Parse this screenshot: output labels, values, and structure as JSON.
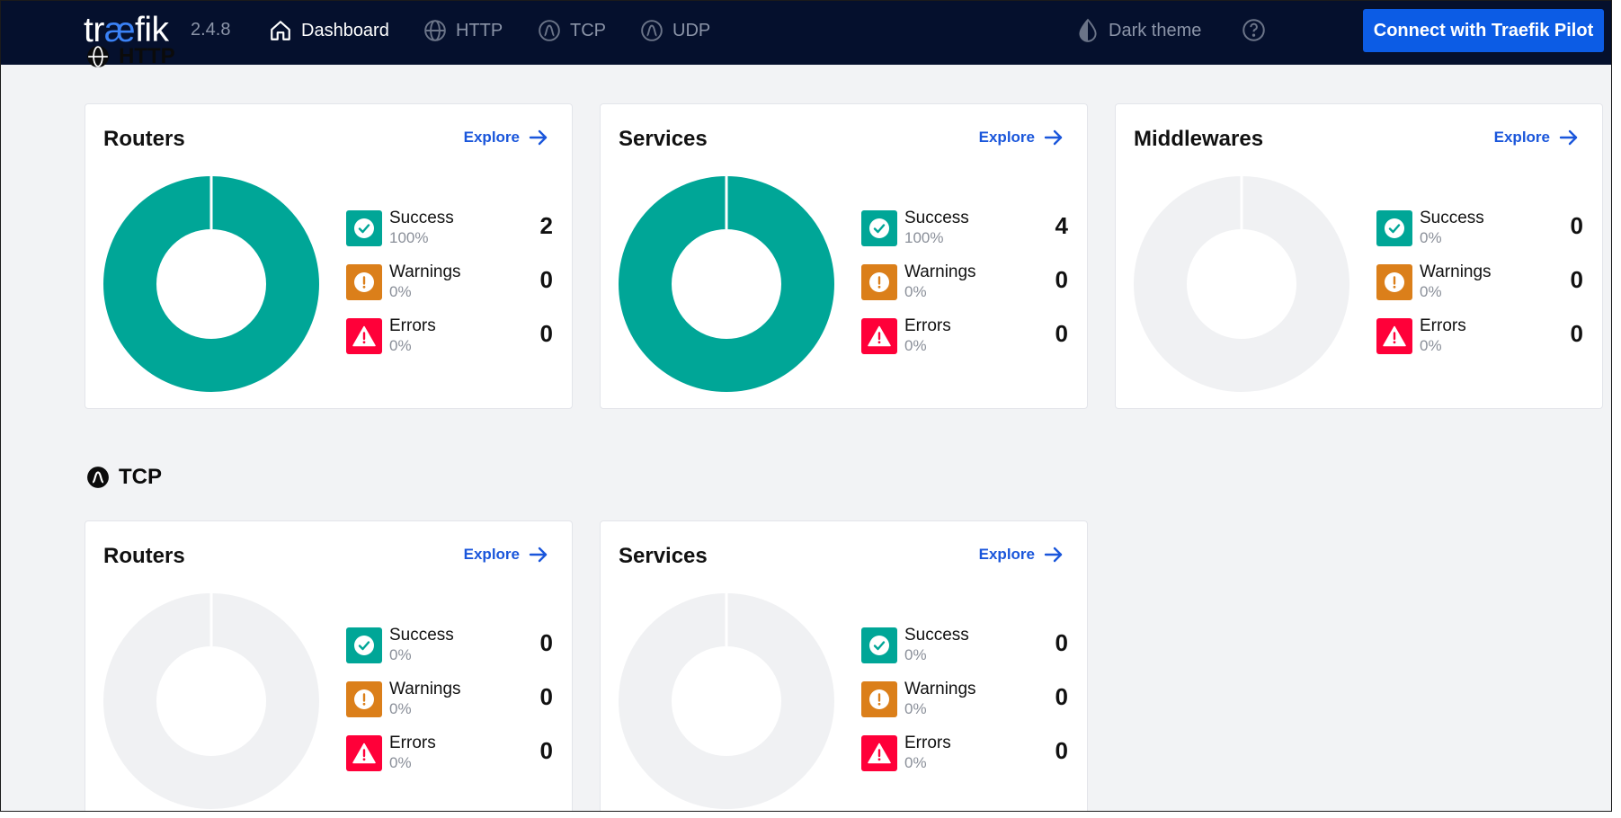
{
  "header": {
    "logo_main": "tr",
    "logo_ae": "æ",
    "logo_tail": "fik",
    "version": "2.4.8",
    "nav": {
      "dashboard": "Dashboard",
      "http": "HTTP",
      "tcp": "TCP",
      "udp": "UDP",
      "theme": "Dark theme"
    },
    "pilot_button": "Connect with Traefik Pilot"
  },
  "colors": {
    "success": "#00a697",
    "warning": "#db7f1a",
    "error": "#ff0039",
    "empty": "#f0f1f3",
    "accent": "#0c5ce5"
  },
  "sections": {
    "http": {
      "title": "HTTP",
      "cards": [
        {
          "title": "Routers",
          "explore": "Explore",
          "success": {
            "label": "Success",
            "pct": "100%",
            "count": 2
          },
          "warnings": {
            "label": "Warnings",
            "pct": "0%",
            "count": 0
          },
          "errors": {
            "label": "Errors",
            "pct": "0%",
            "count": 0
          }
        },
        {
          "title": "Services",
          "explore": "Explore",
          "success": {
            "label": "Success",
            "pct": "100%",
            "count": 4
          },
          "warnings": {
            "label": "Warnings",
            "pct": "0%",
            "count": 0
          },
          "errors": {
            "label": "Errors",
            "pct": "0%",
            "count": 0
          }
        },
        {
          "title": "Middlewares",
          "explore": "Explore",
          "success": {
            "label": "Success",
            "pct": "0%",
            "count": 0
          },
          "warnings": {
            "label": "Warnings",
            "pct": "0%",
            "count": 0
          },
          "errors": {
            "label": "Errors",
            "pct": "0%",
            "count": 0
          }
        }
      ]
    },
    "tcp": {
      "title": "TCP",
      "cards": [
        {
          "title": "Routers",
          "explore": "Explore",
          "success": {
            "label": "Success",
            "pct": "0%",
            "count": 0
          },
          "warnings": {
            "label": "Warnings",
            "pct": "0%",
            "count": 0
          },
          "errors": {
            "label": "Errors",
            "pct": "0%",
            "count": 0
          }
        },
        {
          "title": "Services",
          "explore": "Explore",
          "success": {
            "label": "Success",
            "pct": "0%",
            "count": 0
          },
          "warnings": {
            "label": "Warnings",
            "pct": "0%",
            "count": 0
          },
          "errors": {
            "label": "Errors",
            "pct": "0%",
            "count": 0
          }
        }
      ]
    }
  }
}
